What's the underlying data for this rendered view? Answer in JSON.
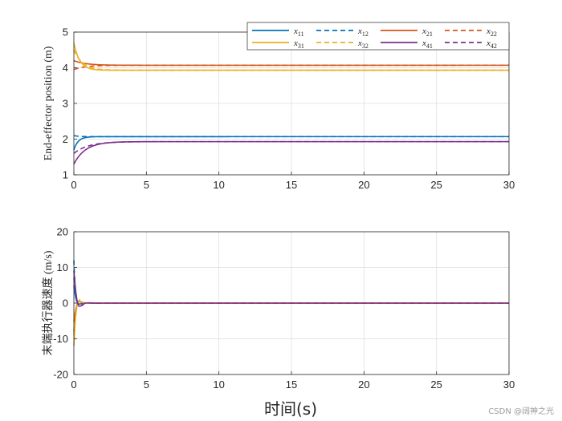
{
  "chart_data": [
    {
      "type": "line",
      "ylabel": "End-effector position (m)",
      "xlim": [
        0,
        30
      ],
      "ylim": [
        1,
        5
      ],
      "xticks": [
        "0",
        "5",
        "10",
        "15",
        "20",
        "25",
        "30"
      ],
      "yticks": [
        "1",
        "2",
        "3",
        "4",
        "5"
      ],
      "grid": true,
      "legend_position": "top-right",
      "series": [
        {
          "name": "x11",
          "color": "#0072BD",
          "dash": false,
          "start": 1.7,
          "end": 2.07,
          "tau": 0.3
        },
        {
          "name": "x12",
          "color": "#0072BD",
          "dash": true,
          "start": 2.1,
          "end": 2.07,
          "tau": 0.3
        },
        {
          "name": "x21",
          "color": "#D95319",
          "dash": false,
          "start": 4.2,
          "end": 4.07,
          "tau": 0.8
        },
        {
          "name": "x22",
          "color": "#D95319",
          "dash": true,
          "start": 3.95,
          "end": 4.07,
          "tau": 0.8
        },
        {
          "name": "x31",
          "color": "#EDB120",
          "dash": false,
          "start": 4.7,
          "end": 3.93,
          "tau": 0.4
        },
        {
          "name": "x32",
          "color": "#EDB120",
          "dash": true,
          "start": 4.5,
          "end": 3.93,
          "tau": 0.6
        },
        {
          "name": "x41",
          "color": "#7E2F8E",
          "dash": false,
          "start": 1.3,
          "end": 1.93,
          "tau": 0.8
        },
        {
          "name": "x42",
          "color": "#7E2F8E",
          "dash": true,
          "start": 1.6,
          "end": 1.93,
          "tau": 1.0
        }
      ]
    },
    {
      "type": "line",
      "ylabel": "末端执行器速度 (m/s)",
      "xlabel": "时间(s)",
      "xlim": [
        0,
        30
      ],
      "ylim": [
        -20,
        20
      ],
      "xticks": [
        "0",
        "5",
        "10",
        "15",
        "20",
        "25",
        "30"
      ],
      "yticks": [
        "-20",
        "-10",
        "0",
        "10",
        "20"
      ],
      "grid": true,
      "series": [
        {
          "name": "x11",
          "color": "#0072BD",
          "dash": false,
          "start": 5,
          "tau": 0.15
        },
        {
          "name": "x12",
          "color": "#0072BD",
          "dash": true,
          "start": 12,
          "tau": 0.12
        },
        {
          "name": "x21",
          "color": "#D95319",
          "dash": false,
          "start": -5,
          "tau": 0.2
        },
        {
          "name": "x22",
          "color": "#D95319",
          "dash": true,
          "start": -8,
          "tau": 0.15
        },
        {
          "name": "x31",
          "color": "#EDB120",
          "dash": false,
          "start": -12,
          "tau": 0.15
        },
        {
          "name": "x32",
          "color": "#EDB120",
          "dash": true,
          "start": -9,
          "tau": 0.2
        },
        {
          "name": "x41",
          "color": "#7E2F8E",
          "dash": false,
          "start": 9,
          "tau": 0.2
        },
        {
          "name": "x42",
          "color": "#7E2F8E",
          "dash": true,
          "start": 7,
          "tau": 0.25
        }
      ]
    }
  ],
  "watermark": "CSDN @阔神之光"
}
